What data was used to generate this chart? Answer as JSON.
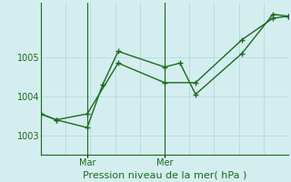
{
  "xlabel": "Pression niveau de la mer( hPa )",
  "background_color": "#d4eef0",
  "grid_color": "#b8dce0",
  "line_color": "#1a6b1a",
  "ylim": [
    1002.5,
    1006.4
  ],
  "yticks": [
    1003,
    1004,
    1005
  ],
  "ytick_labels": [
    "1003",
    "1004",
    "1005"
  ],
  "xlim": [
    0,
    16
  ],
  "num_vgrid": 10,
  "mar_x": 3,
  "mer_x": 8,
  "line1_x": [
    0,
    1,
    3,
    4,
    5,
    8,
    9,
    10,
    13,
    15,
    16
  ],
  "line1_y": [
    1003.55,
    1003.4,
    1003.2,
    1004.3,
    1005.15,
    1004.75,
    1004.85,
    1004.05,
    1005.1,
    1006.1,
    1006.05
  ],
  "line2_x": [
    0,
    1,
    3,
    5,
    8,
    10,
    13,
    15,
    16
  ],
  "line2_y": [
    1003.55,
    1003.4,
    1003.55,
    1004.85,
    1004.35,
    1004.35,
    1005.45,
    1006.0,
    1006.05
  ],
  "fig_width": 3.2,
  "fig_height": 2.0,
  "dpi": 100
}
